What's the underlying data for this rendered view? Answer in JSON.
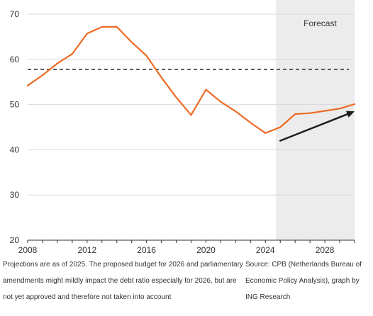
{
  "chart_data": {
    "type": "line",
    "title": "",
    "xlabel": "",
    "ylabel": "",
    "xlim": [
      2008,
      2030
    ],
    "ylim": [
      20,
      70
    ],
    "x_ticks": [
      2008,
      2012,
      2016,
      2020,
      2024,
      2028
    ],
    "y_ticks": [
      20,
      30,
      40,
      50,
      60,
      70
    ],
    "grid": "horizontal",
    "forecast_region": {
      "start": 2024.7,
      "end": 2030,
      "label": "Forecast"
    },
    "reference_line": {
      "y": 57.8,
      "style": "dashed"
    },
    "trend_arrow": {
      "x": [
        2025,
        2030
      ],
      "y": [
        42,
        48.5
      ]
    },
    "series": [
      {
        "x": [
          2008,
          2009,
          2010,
          2011,
          2012,
          2013,
          2014,
          2015,
          2016,
          2017,
          2018,
          2019,
          2020,
          2021,
          2022,
          2023,
          2024,
          2025,
          2026,
          2027,
          2028,
          2029,
          2030
        ],
        "values": [
          54.2,
          56.5,
          59.1,
          61.2,
          65.7,
          67.2,
          67.2,
          63.8,
          60.8,
          56.0,
          51.6,
          47.7,
          53.3,
          50.6,
          48.5,
          46.0,
          43.7,
          45.0,
          47.9,
          48.1,
          48.6,
          49.1,
          50.1
        ]
      }
    ]
  },
  "colors": {
    "series_line": "#ee6a24",
    "arrow": "#1e1e1e",
    "reference_line": "#333333",
    "forecast_shade": "#ececec",
    "grid": "#d9d9d9",
    "axis": "#333333"
  },
  "footnote": {
    "left": "Projections are as of 2025. The proposed budget for 2026 and parliamentary amendments might mildly impact the debt ratio especially for 2026, but are not yet approved and therefore not taken into account",
    "right": "Source: CPB (Netherlands Bureau of Economic Policy Analysis), graph by ING Research"
  }
}
